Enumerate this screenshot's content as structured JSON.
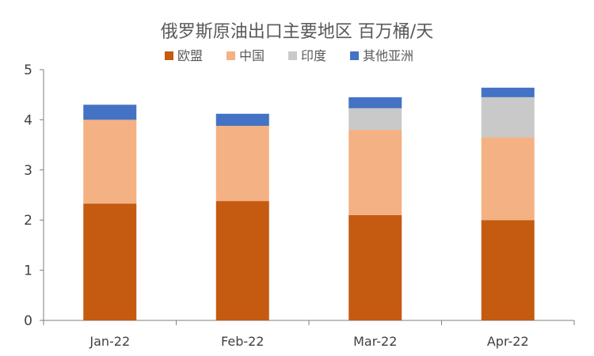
{
  "chart_data": {
    "type": "bar",
    "stacked": true,
    "title": "俄罗斯原油出口主要地区 百万桶/天",
    "xlabel": "",
    "ylabel": "",
    "categories": [
      "Jan-22",
      "Feb-22",
      "Mar-22",
      "Apr-22"
    ],
    "ylim": [
      0,
      5
    ],
    "yticks": [
      0,
      1,
      2,
      3,
      4,
      5
    ],
    "grid": false,
    "legend_position": "top",
    "series": [
      {
        "name": "欧盟",
        "color": "#c55a11",
        "values": [
          2.33,
          2.38,
          2.1,
          2.0
        ]
      },
      {
        "name": "中国",
        "color": "#f4b183",
        "values": [
          1.67,
          1.5,
          1.7,
          1.65
        ]
      },
      {
        "name": "印度",
        "color": "#c9c9c9",
        "values": [
          0.0,
          0.0,
          0.43,
          0.8
        ]
      },
      {
        "name": "其他亚洲",
        "color": "#4472c4",
        "values": [
          0.3,
          0.24,
          0.22,
          0.19
        ]
      }
    ]
  }
}
